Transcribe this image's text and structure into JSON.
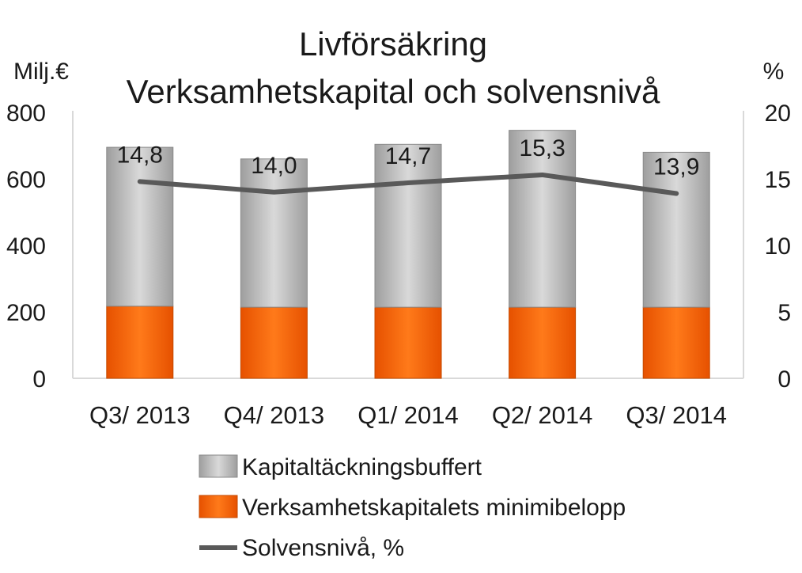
{
  "chart_data": {
    "type": "bar",
    "stacked": true,
    "title": "Livförsäkring",
    "subtitle": "Verksamhetskapital och solvensnivå",
    "ylabel": "Milj.€",
    "y2label": "%",
    "ylim": [
      0,
      800
    ],
    "y2lim": [
      0,
      20
    ],
    "yticks": [
      "0",
      "200",
      "400",
      "600",
      "800"
    ],
    "y2ticks": [
      "0",
      "5",
      "10",
      "15",
      "20"
    ],
    "categories": [
      "Q3/ 2013",
      "Q4/ 2013",
      "Q1/ 2014",
      "Q2/ 2014",
      "Q3/ 2014"
    ],
    "series": [
      {
        "name": "Verksamhetskapitalets minimibelopp",
        "type": "bar",
        "axis": "left",
        "color": "#FF6600",
        "values": [
          217,
          214,
          214,
          214,
          214
        ]
      },
      {
        "name": "Kapitaltäckningsbuffert",
        "type": "bar",
        "axis": "left",
        "color": "#BDBDBD",
        "values": [
          478,
          446,
          490,
          532,
          466
        ]
      },
      {
        "name": "Solvensnivå, %",
        "type": "line",
        "axis": "right",
        "color": "#595959",
        "values": [
          14.8,
          14.0,
          14.7,
          15.3,
          13.9
        ],
        "labels": [
          "14,8",
          "14,0",
          "14,7",
          "15,3",
          "13,9"
        ]
      }
    ],
    "legend": [
      "Kapitaltäckningsbuffert",
      "Verksamhetskapitalets minimibelopp",
      "Solvensnivå, %"
    ],
    "legend_position": "bottom",
    "grid": false
  }
}
